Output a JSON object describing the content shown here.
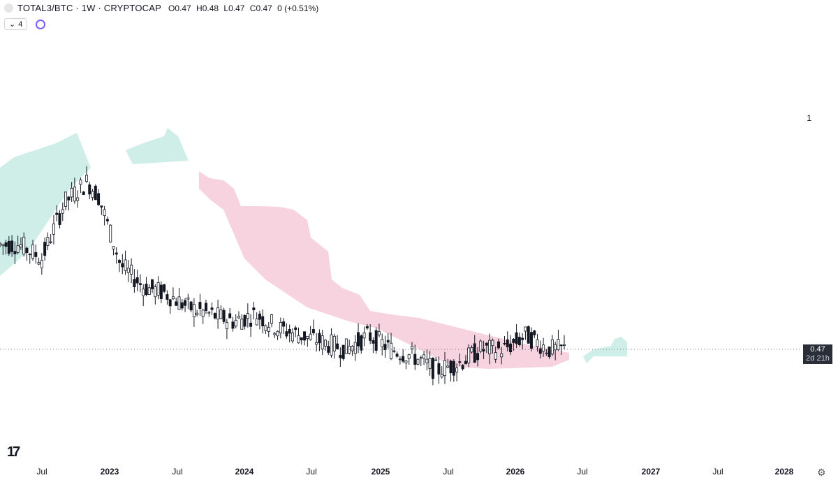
{
  "header": {
    "title": "TOTAL3/BTC · 1W · CRYPTOCAP",
    "open": "O0.47",
    "high": "H0.48",
    "low": "L0.47",
    "close": "C0.47",
    "change": "0 (+0.51%)",
    "indicator_count": "4"
  },
  "right_label": "1",
  "price_label": {
    "price": "0.47",
    "countdown": "2d 21h"
  },
  "x_axis": {
    "ticks": [
      {
        "label": "Jul",
        "bold": false
      },
      {
        "label": "2023",
        "bold": true
      },
      {
        "label": "Jul",
        "bold": false
      },
      {
        "label": "2024",
        "bold": true
      },
      {
        "label": "Jul",
        "bold": false
      },
      {
        "label": "2025",
        "bold": true
      },
      {
        "label": "Jul",
        "bold": false
      },
      {
        "label": "2026",
        "bold": true
      },
      {
        "label": "Jul",
        "bold": false
      },
      {
        "label": "2027",
        "bold": true
      },
      {
        "label": "Jul",
        "bold": false
      },
      {
        "label": "2028",
        "bold": true
      }
    ]
  },
  "colors": {
    "tenkan": "#4bb8cf",
    "kijun": "#d83c64",
    "lagging": "#e8a13a",
    "cloud_bull": "#cfeee8",
    "cloud_bear": "#f6d3df",
    "candle": "#131722"
  },
  "chart_data": {
    "type": "candlestick",
    "interval": "1W",
    "x_range": [
      "2022-06",
      "2028-02"
    ],
    "last_close": 0.47,
    "close_series": [
      {
        "x": "2022-05",
        "y": 0.62
      },
      {
        "x": "2022-07",
        "y": 0.6
      },
      {
        "x": "2022-09",
        "y": 0.68
      },
      {
        "x": "2022-11",
        "y": 0.71
      },
      {
        "x": "2022-12",
        "y": 0.69
      },
      {
        "x": "2023-02",
        "y": 0.59
      },
      {
        "x": "2023-04",
        "y": 0.56
      },
      {
        "x": "2023-06",
        "y": 0.55
      },
      {
        "x": "2023-08",
        "y": 0.53
      },
      {
        "x": "2023-10",
        "y": 0.52
      },
      {
        "x": "2023-12",
        "y": 0.51
      },
      {
        "x": "2024-02",
        "y": 0.52
      },
      {
        "x": "2024-04",
        "y": 0.5
      },
      {
        "x": "2024-06",
        "y": 0.49
      },
      {
        "x": "2024-08",
        "y": 0.48
      },
      {
        "x": "2024-10",
        "y": 0.47
      },
      {
        "x": "2024-12",
        "y": 0.49
      },
      {
        "x": "2025-02",
        "y": 0.47
      },
      {
        "x": "2025-04",
        "y": 0.46
      },
      {
        "x": "2025-06",
        "y": 0.44
      },
      {
        "x": "2025-08",
        "y": 0.45
      },
      {
        "x": "2025-10",
        "y": 0.47
      },
      {
        "x": "2025-12",
        "y": 0.47
      },
      {
        "x": "2026-02",
        "y": 0.49
      },
      {
        "x": "2026-04",
        "y": 0.47
      }
    ]
  }
}
